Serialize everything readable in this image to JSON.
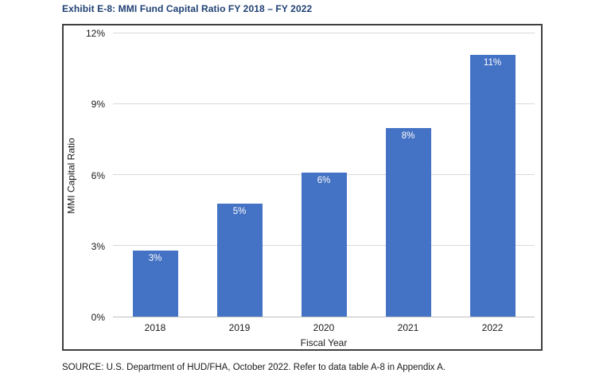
{
  "page": {
    "title": "Exhibit E-8: MMI Fund Capital Ratio FY 2018 – FY 2022",
    "source": "SOURCE: U.S. Department of HUD/FHA, October 2022. Refer to data table A-8 in Appendix A."
  },
  "colors": {
    "bar": "#4472C4",
    "title_text": "#1F4073",
    "gridline": "#D9D9D9",
    "axis_line": "#BFBFBF",
    "frame_border": "#3F3F3F",
    "data_label": "#FFFFFF"
  },
  "chart_data": {
    "type": "bar",
    "title": "Exhibit E-8: MMI Fund Capital Ratio FY 2018 – FY 2022",
    "categories": [
      "2018",
      "2019",
      "2020",
      "2021",
      "2022"
    ],
    "values": [
      2.8,
      4.8,
      6.1,
      8.0,
      11.1
    ],
    "bar_labels": [
      "3%",
      "5%",
      "6%",
      "8%",
      "11%"
    ],
    "xlabel": "Fiscal Year",
    "ylabel": "MMI Capital Ratio",
    "ylim": [
      0,
      12
    ],
    "yticks": [
      0,
      3,
      6,
      9,
      12
    ],
    "ytick_labels": [
      "0%",
      "3%",
      "6%",
      "9%",
      "12%"
    ],
    "grid": "horizontal-only",
    "legend": "none",
    "bar_color": "#4472C4",
    "data_label_position": "inside-top",
    "data_label_color": "#FFFFFF"
  }
}
